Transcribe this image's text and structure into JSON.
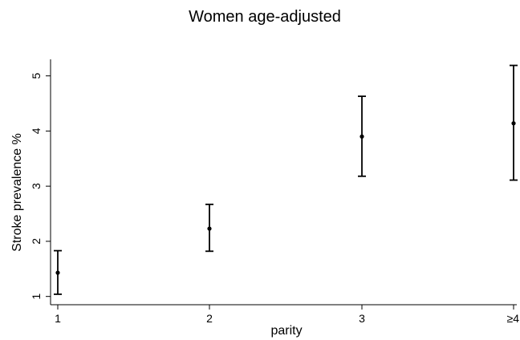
{
  "chart_data": {
    "type": "scatter",
    "title": "Women age-adjusted",
    "xlabel": "parity",
    "ylabel": "Stroke prevalence %",
    "categories": [
      "1",
      "2",
      "3",
      "≥4"
    ],
    "x_tick_labels": [
      "1",
      "2",
      "3",
      "≥4"
    ],
    "y_ticks": [
      1,
      2,
      3,
      4,
      5
    ],
    "y_tick_labels": [
      "1",
      "2",
      "3",
      "4",
      "5"
    ],
    "ylim": [
      0.85,
      5.3
    ],
    "grid": false,
    "series": [
      {
        "values": [
          1.43,
          2.23,
          3.9,
          4.14
        ],
        "ci_lower": [
          1.04,
          1.82,
          3.18,
          3.11
        ],
        "ci_upper": [
          1.83,
          2.67,
          4.63,
          5.19
        ]
      }
    ]
  }
}
